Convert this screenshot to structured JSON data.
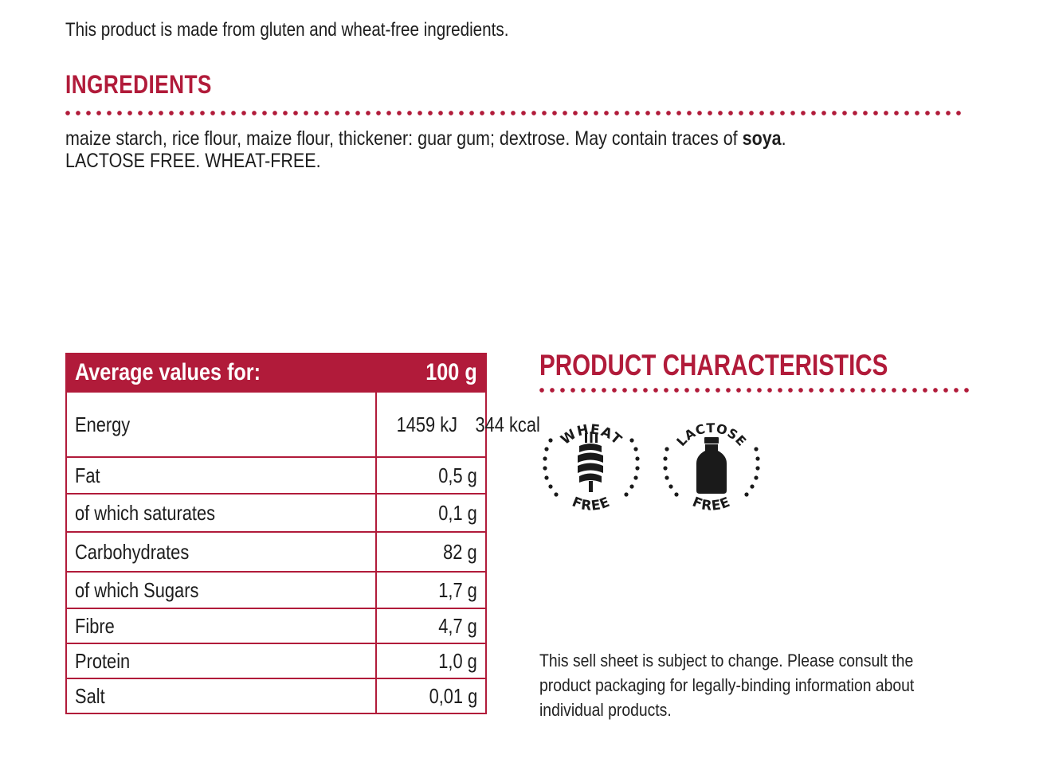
{
  "intro": "This product is made from gluten and wheat-free ingredients.",
  "ingredients": {
    "heading": "INGREDIENTS",
    "text_before": "maize starch, rice flour, maize flour, thickener: guar gum; dextrose. May contain traces of ",
    "allergen": "soya",
    "text_after": ".",
    "line2": "LACTOSE FREE. WHEAT-FREE."
  },
  "nutrition": {
    "header_label": "Average values for:",
    "header_value": "100 g",
    "rows": [
      {
        "label": "Energy",
        "value": "1459 kJ",
        "value2": "344 kcal"
      },
      {
        "label": "Fat",
        "value": "0,5 g"
      },
      {
        "label": "of which saturates",
        "value": "0,1 g"
      },
      {
        "label": "Carbohydrates",
        "value": "82 g"
      },
      {
        "label": "of which Sugars",
        "value": "1,7 g"
      },
      {
        "label": "Fibre",
        "value": "4,7 g"
      },
      {
        "label": "Protein",
        "value": "1,0 g"
      },
      {
        "label": "Salt",
        "value": "0,01 g"
      }
    ]
  },
  "characteristics": {
    "heading": "PRODUCT CHARACTERISTICS",
    "badges": [
      {
        "top": "WHEAT",
        "bottom": "FREE",
        "icon": "wheat-icon"
      },
      {
        "top": "LACTOSE",
        "bottom": "FREE",
        "icon": "milk-bottle-icon"
      }
    ]
  },
  "disclaimer": {
    "line1": "This sell sheet is subject to change. Please consult the",
    "line2": "product packaging for legally-binding information about",
    "line3": "individual products."
  },
  "colors": {
    "accent": "#b11b3a",
    "text": "#1d1d1d"
  }
}
